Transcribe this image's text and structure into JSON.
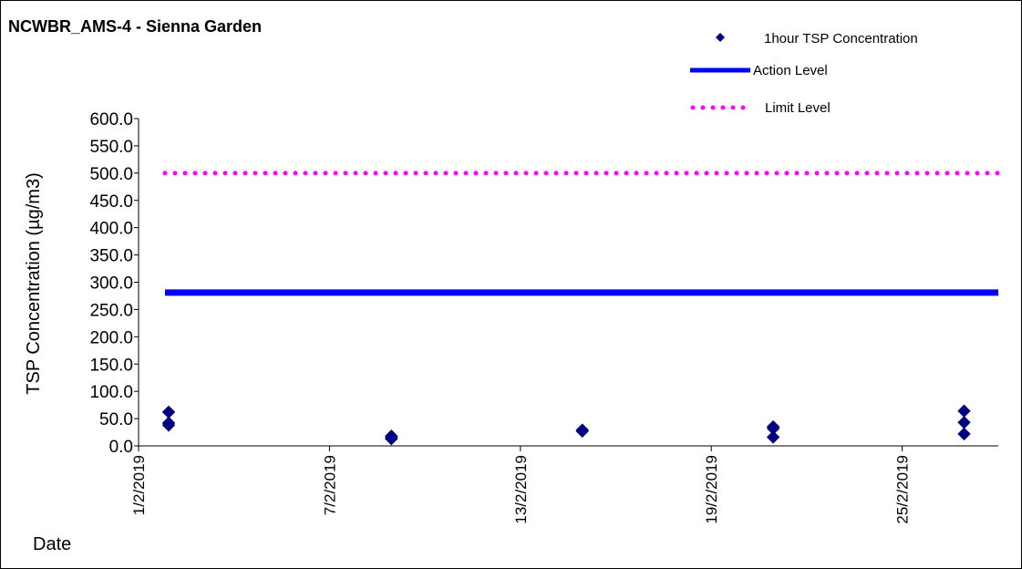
{
  "chart_data": {
    "type": "scatter",
    "title": "NCWBR_AMS-4 - Sienna Garden",
    "xlabel": "Date",
    "ylabel": "TSP Concentration (µg/m3)",
    "ylim": [
      0,
      600
    ],
    "xlim": [
      "2019-02-01",
      "2019-03-04"
    ],
    "y_ticks": [
      "0.0",
      "50.0",
      "100.0",
      "150.0",
      "200.0",
      "250.0",
      "300.0",
      "350.0",
      "400.0",
      "450.0",
      "500.0",
      "550.0",
      "600.0"
    ],
    "x_ticks": [
      {
        "date": "2019-02-01",
        "label": "1/2/2019"
      },
      {
        "date": "2019-02-07",
        "label": "7/2/2019"
      },
      {
        "date": "2019-02-13",
        "label": "13/2/2019"
      },
      {
        "date": "2019-02-19",
        "label": "19/2/2019"
      },
      {
        "date": "2019-02-25",
        "label": "25/2/2019"
      }
    ],
    "grid": false,
    "legend_position": "top-right",
    "series": [
      {
        "name": "1hour TSP Concentration",
        "kind": "scatter",
        "marker": "diamond",
        "color": "#000080",
        "points": [
          {
            "x": "2019-02-01",
            "y": 62
          },
          {
            "x": "2019-02-01",
            "y": 42
          },
          {
            "x": "2019-02-01",
            "y": 38
          },
          {
            "x": "2019-02-08",
            "y": 18
          },
          {
            "x": "2019-02-08",
            "y": 15
          },
          {
            "x": "2019-02-08",
            "y": 13
          },
          {
            "x": "2019-02-14",
            "y": 29
          },
          {
            "x": "2019-02-14",
            "y": 27
          },
          {
            "x": "2019-02-20",
            "y": 35
          },
          {
            "x": "2019-02-20",
            "y": 32
          },
          {
            "x": "2019-02-20",
            "y": 16
          },
          {
            "x": "2019-02-26",
            "y": 64
          },
          {
            "x": "2019-02-26",
            "y": 43
          },
          {
            "x": "2019-02-26",
            "y": 22
          }
        ]
      },
      {
        "name": "Action Level",
        "kind": "line",
        "style": "solid",
        "color": "#0000FF",
        "points": [
          {
            "x": "2019-02-01",
            "y": 281
          },
          {
            "x": "2019-03-04",
            "y": 281
          }
        ]
      },
      {
        "name": "Limit Level",
        "kind": "line",
        "style": "dotted",
        "color": "#FF00FF",
        "points": [
          {
            "x": "2019-02-01",
            "y": 500
          },
          {
            "x": "2019-03-04",
            "y": 500
          }
        ]
      }
    ]
  }
}
